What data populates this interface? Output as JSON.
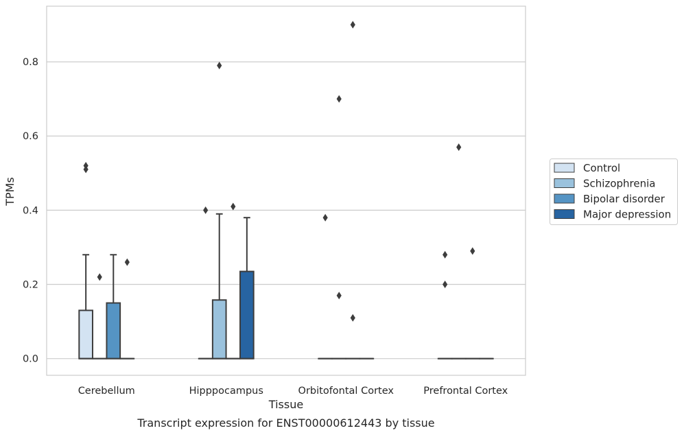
{
  "chart_data": {
    "type": "box",
    "caption": "Transcript expression for ENST00000612443 by tissue",
    "xlabel": "Tissue",
    "ylabel": "TPMs",
    "ylim": [
      -0.045,
      0.95
    ],
    "yticks": [
      0.0,
      0.2,
      0.4,
      0.6,
      0.8
    ],
    "ytick_labels": [
      "0.0",
      "0.2",
      "0.4",
      "0.6",
      "0.8"
    ],
    "grid": "horizontal",
    "legend_position": "right",
    "categories": [
      "Cerebellum",
      "Hipppocampus",
      "Orbitofontal Cortex",
      "Prefrontal Cortex"
    ],
    "series": [
      {
        "name": "Control",
        "color": "#d3e3f2",
        "boxes": [
          {
            "q1": 0.0,
            "median": 0.0,
            "q3": 0.13,
            "whisker_low": 0.0,
            "whisker_high": 0.28,
            "outliers": [
              0.51,
              0.52
            ]
          },
          {
            "q1": 0.0,
            "median": 0.0,
            "q3": 0.0,
            "whisker_low": 0.0,
            "whisker_high": 0.0,
            "outliers": [
              0.4
            ]
          },
          {
            "q1": 0.0,
            "median": 0.0,
            "q3": 0.0,
            "whisker_low": 0.0,
            "whisker_high": 0.0,
            "outliers": [
              0.38
            ]
          },
          {
            "q1": 0.0,
            "median": 0.0,
            "q3": 0.0,
            "whisker_low": 0.0,
            "whisker_high": 0.0,
            "outliers": [
              0.2,
              0.28
            ]
          }
        ]
      },
      {
        "name": "Schizophrenia",
        "color": "#9ac2dd",
        "boxes": [
          {
            "q1": 0.0,
            "median": 0.0,
            "q3": 0.0,
            "whisker_low": 0.0,
            "whisker_high": 0.0,
            "outliers": [
              0.22
            ]
          },
          {
            "q1": 0.0,
            "median": 0.0,
            "q3": 0.158,
            "whisker_low": 0.0,
            "whisker_high": 0.39,
            "outliers": [
              0.79
            ]
          },
          {
            "q1": 0.0,
            "median": 0.0,
            "q3": 0.0,
            "whisker_low": 0.0,
            "whisker_high": 0.0,
            "outliers": [
              0.17,
              0.7
            ]
          },
          {
            "q1": 0.0,
            "median": 0.0,
            "q3": 0.0,
            "whisker_low": 0.0,
            "whisker_high": 0.0,
            "outliers": [
              0.57
            ]
          }
        ]
      },
      {
        "name": "Bipolar disorder",
        "color": "#5594c4",
        "boxes": [
          {
            "q1": 0.0,
            "median": 0.0,
            "q3": 0.15,
            "whisker_low": 0.0,
            "whisker_high": 0.28,
            "outliers": []
          },
          {
            "q1": 0.0,
            "median": 0.0,
            "q3": 0.0,
            "whisker_low": 0.0,
            "whisker_high": 0.0,
            "outliers": [
              0.41
            ]
          },
          {
            "q1": 0.0,
            "median": 0.0,
            "q3": 0.0,
            "whisker_low": 0.0,
            "whisker_high": 0.0,
            "outliers": [
              0.11,
              0.9
            ]
          },
          {
            "q1": 0.0,
            "median": 0.0,
            "q3": 0.0,
            "whisker_low": 0.0,
            "whisker_high": 0.0,
            "outliers": [
              0.29
            ]
          }
        ]
      },
      {
        "name": "Major depression",
        "color": "#2764a2",
        "boxes": [
          {
            "q1": 0.0,
            "median": 0.0,
            "q3": 0.0,
            "whisker_low": 0.0,
            "whisker_high": 0.0,
            "outliers": [
              0.26
            ]
          },
          {
            "q1": 0.0,
            "median": 0.0,
            "q3": 0.235,
            "whisker_low": 0.0,
            "whisker_high": 0.38,
            "outliers": []
          },
          {
            "q1": 0.0,
            "median": 0.0,
            "q3": 0.0,
            "whisker_low": 0.0,
            "whisker_high": 0.0,
            "outliers": []
          },
          {
            "q1": 0.0,
            "median": 0.0,
            "q3": 0.0,
            "whisker_low": 0.0,
            "whisker_high": 0.0,
            "outliers": []
          }
        ]
      }
    ]
  }
}
